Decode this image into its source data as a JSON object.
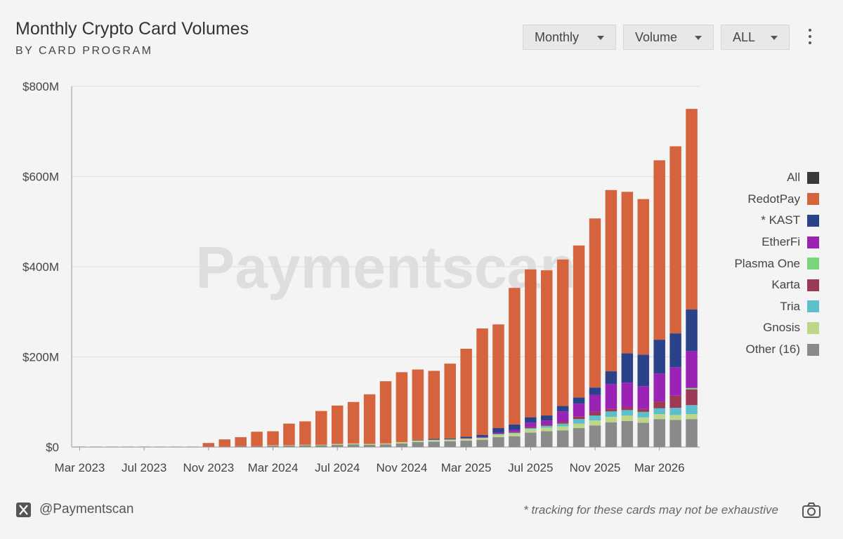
{
  "header": {
    "title": "Monthly Crypto Card Volumes",
    "subtitle": "BY CARD PROGRAM"
  },
  "controls": {
    "period": "Monthly",
    "metric": "Volume",
    "filter": "ALL",
    "more_icon": "kebab-menu-icon"
  },
  "footer": {
    "x_icon": "x-logo-icon",
    "handle": "@Paymentscan",
    "note": "* tracking for these cards may not be exhaustive",
    "camera_icon": "camera-icon"
  },
  "watermark": "Paymentscan",
  "colors": {
    "All": "#3a3a3a",
    "RedotPay": "#d4633e",
    "* KAST": "#2a428a",
    "EtherFi": "#9a22b5",
    "Plasma One": "#79d47c",
    "Karta": "#9c3a55",
    "Tria": "#5ebfcc",
    "Gnosis": "#bdd68a",
    "Other (16)": "#8a8a8a"
  },
  "chart_data": {
    "type": "bar",
    "stacked": true,
    "title": "Monthly Crypto Card Volumes",
    "subtitle": "BY CARD PROGRAM",
    "ylim": [
      0,
      800
    ],
    "y_ticks": [
      "$0",
      "$200M",
      "$400M",
      "$600M",
      "$800M"
    ],
    "y_tick_values": [
      0,
      200,
      400,
      600,
      800
    ],
    "x_tick_labels": [
      "Mar 2023",
      "Jul 2023",
      "Nov 2023",
      "Mar 2024",
      "Jul 2024",
      "Nov 2024",
      "Mar 2025",
      "Jul 2025",
      "Nov 2025",
      "Mar 2026"
    ],
    "categories": [
      "Mar 2023",
      "Apr 2023",
      "May 2023",
      "Jun 2023",
      "Jul 2023",
      "Aug 2023",
      "Sep 2023",
      "Oct 2023",
      "Nov 2023",
      "Dec 2023",
      "Jan 2024",
      "Feb 2024",
      "Mar 2024",
      "Apr 2024",
      "May 2024",
      "Jun 2024",
      "Jul 2024",
      "Aug 2024",
      "Sep 2024",
      "Oct 2024",
      "Nov 2024",
      "Dec 2024",
      "Jan 2025",
      "Feb 2025",
      "Mar 2025",
      "Apr 2025",
      "May 2025",
      "Jun 2025",
      "Jul 2025",
      "Aug 2025",
      "Sep 2025",
      "Oct 2025",
      "Nov 2025",
      "Dec 2025",
      "Jan 2026",
      "Feb 2026",
      "Mar 2026",
      "Apr 2026",
      "May 2026"
    ],
    "legend_placement": "right",
    "grid": true,
    "series": [
      {
        "name": "Other (16)",
        "values": [
          1,
          1,
          1,
          1,
          1,
          1,
          1,
          1,
          1,
          1,
          2,
          2,
          3,
          3,
          4,
          4,
          5,
          6,
          5,
          6,
          8,
          11,
          12,
          13,
          14,
          16,
          22,
          24,
          32,
          35,
          37,
          42,
          48,
          55,
          58,
          54,
          62,
          60,
          62
        ]
      },
      {
        "name": "Gnosis",
        "values": [
          0,
          0,
          0,
          0,
          0,
          0,
          0,
          0,
          0,
          0,
          0,
          0,
          1,
          1,
          1,
          1,
          2,
          2,
          2,
          2,
          3,
          4,
          4,
          4,
          5,
          5,
          6,
          7,
          8,
          8,
          9,
          10,
          11,
          12,
          12,
          12,
          11,
          11,
          11
        ]
      },
      {
        "name": "Tria",
        "values": [
          0,
          0,
          0,
          0,
          0,
          0,
          0,
          0,
          0,
          0,
          0,
          0,
          0,
          0,
          0,
          0,
          0,
          0,
          0,
          0,
          0,
          0,
          0,
          0,
          0,
          0,
          1,
          1,
          2,
          4,
          6,
          10,
          11,
          12,
          12,
          12,
          13,
          16,
          20
        ]
      },
      {
        "name": "Karta",
        "values": [
          0,
          0,
          0,
          0,
          0,
          0,
          0,
          0,
          0,
          0,
          0,
          0,
          0,
          0,
          0,
          0,
          0,
          0,
          0,
          0,
          0,
          0,
          0,
          0,
          0,
          0,
          0,
          1,
          2,
          2,
          4,
          6,
          8,
          6,
          6,
          7,
          15,
          27,
          35
        ]
      },
      {
        "name": "Plasma One",
        "values": [
          0,
          0,
          0,
          0,
          0,
          0,
          0,
          0,
          0,
          0,
          0,
          0,
          0,
          0,
          0,
          0,
          0,
          0,
          0,
          0,
          0,
          0,
          0,
          0,
          0,
          0,
          0,
          0,
          0,
          0,
          0,
          0,
          0,
          0,
          0,
          0,
          0,
          0,
          3
        ]
      },
      {
        "name": "EtherFi",
        "values": [
          0,
          0,
          0,
          0,
          0,
          0,
          0,
          0,
          0,
          0,
          0,
          0,
          0,
          0,
          0,
          0,
          0,
          0,
          0,
          0,
          0,
          0,
          0,
          0,
          1,
          1,
          3,
          5,
          10,
          10,
          23,
          28,
          38,
          55,
          55,
          50,
          62,
          63,
          82
        ]
      },
      {
        "name": "* KAST",
        "values": [
          0,
          0,
          0,
          0,
          0,
          0,
          0,
          0,
          0,
          0,
          0,
          0,
          0,
          0,
          0,
          0,
          0,
          0,
          0,
          0,
          0,
          1,
          2,
          2,
          3,
          5,
          10,
          12,
          12,
          11,
          12,
          14,
          16,
          28,
          65,
          70,
          75,
          75,
          92
        ]
      },
      {
        "name": "RedotPay",
        "values": [
          0,
          0,
          0,
          0,
          0,
          0,
          0,
          0,
          8,
          16,
          20,
          32,
          31,
          48,
          52,
          75,
          85,
          92,
          110,
          138,
          155,
          156,
          151,
          166,
          195,
          236,
          230,
          303,
          328,
          322,
          325,
          337,
          375,
          402,
          358,
          345,
          398,
          415,
          445
        ]
      }
    ]
  }
}
